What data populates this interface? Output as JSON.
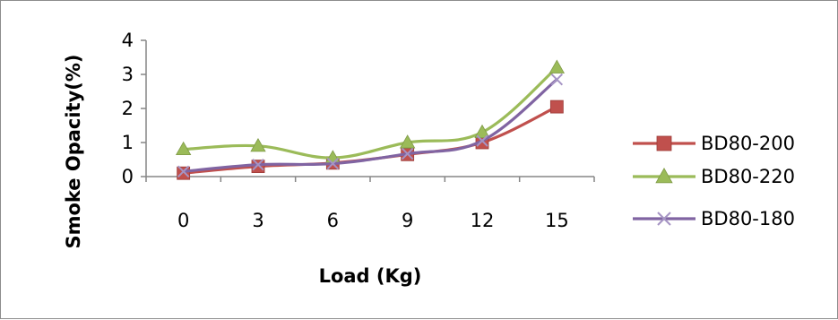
{
  "chart_data": {
    "type": "line",
    "categories": [
      "0",
      "3",
      "6",
      "9",
      "12",
      "15"
    ],
    "xlabel": "Load (Kg)",
    "ylabel": "Smoke Opacity(%)",
    "ylim": [
      0,
      4
    ],
    "yticks": [
      "0",
      "1",
      "2",
      "3",
      "4"
    ],
    "grid": false,
    "legend_position": "right",
    "series": [
      {
        "name": "BD80-200",
        "values": [
          0.1,
          0.3,
          0.4,
          0.65,
          1.0,
          2.05
        ],
        "color": "#c0504d",
        "marker": "square"
      },
      {
        "name": "BD80-220",
        "values": [
          0.8,
          0.9,
          0.55,
          1.0,
          1.3,
          3.2
        ],
        "color": "#9bbb59",
        "marker": "triangle"
      },
      {
        "name": "BD80-180",
        "values": [
          0.15,
          0.35,
          0.38,
          0.67,
          1.05,
          2.85
        ],
        "color": "#8064a2",
        "marker": "x"
      }
    ]
  }
}
